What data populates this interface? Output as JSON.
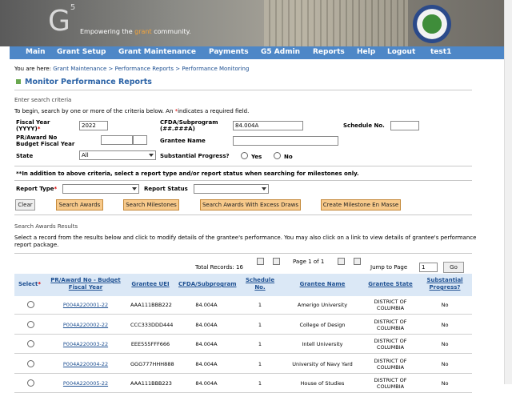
{
  "header": {
    "logo": "G",
    "logo_sup": "5",
    "tagline_pre": "Empowering the ",
    "tagline_em": "grant",
    "tagline_post": " community."
  },
  "nav": [
    "Main",
    "Grant Setup",
    "Grant Maintenance",
    "Payments",
    "G5 Admin",
    "Reports",
    "Help",
    "Logout",
    "test1"
  ],
  "breadcrumb": {
    "label": "You are here:",
    "items": [
      "Grant Maintenance",
      "Performance Reports",
      "Performance Monitoring"
    ],
    "separator": ">"
  },
  "page_title": "Monitor Performance Reports",
  "search": {
    "heading": "Enter search criteria",
    "instructions_pre": "To begin, search by one or more of the criteria below.  An ",
    "required_mark": "*",
    "instructions_post": "indicates a required field.",
    "fiscal_year": {
      "label": "Fiscal Year (YYYY)",
      "value": "2022"
    },
    "cfda": {
      "label": "CFDA/Subprogram (##.###A)",
      "value": "84.004A"
    },
    "schedule_no": {
      "label": "Schedule No."
    },
    "pr_award": {
      "label": "PR/Award No Budget Fiscal Year"
    },
    "grantee_name": {
      "label": "Grantee Name"
    },
    "state": {
      "label": "State",
      "value": "All"
    },
    "substantial_progress": {
      "label": "Substantial Progress?",
      "options": [
        "Yes",
        "No"
      ]
    },
    "note": "**In addition to above criteria, select a report type and/or report status when searching for milestones only.",
    "report_type": {
      "label": "Report Type"
    },
    "report_status": {
      "label": "Report Status"
    },
    "buttons": [
      "Clear",
      "Search Awards",
      "Search Milestones",
      "Search Awards With Excess Draws",
      "Create Milestone En Masse"
    ]
  },
  "results": {
    "heading": "Search Awards Results",
    "description": "Select a record from the results below and click to modify details of the grantee's performance. You may also click on a link to view details of grantee's performance report package.",
    "total_label": "Total Records:",
    "total": 16,
    "page_info": "Page 1 of 1",
    "jump_label": "Jump to Page",
    "jump_value": "1",
    "go": "Go",
    "table": {
      "headers": [
        "Select",
        "PR/Award No - Budget Fiscal Year",
        "Grantee UEI",
        "CFDA/Subprogram",
        "Schedule No.",
        "Grantee Name",
        "Grantee State",
        "Substantial Progress?"
      ],
      "rows": [
        [
          "P004A220001-22",
          "AAA111BBB222",
          "84.004A",
          "1",
          "Amerigo University",
          "DISTRICT OF COLUMBIA",
          "No"
        ],
        [
          "P004A220002-22",
          "CCC333DDD444",
          "84.004A",
          "1",
          "College of Design",
          "DISTRICT OF COLUMBIA",
          "No"
        ],
        [
          "P004A220003-22",
          "EEE555FFF666",
          "84.004A",
          "1",
          "Intell University",
          "DISTRICT OF COLUMBIA",
          "No"
        ],
        [
          "P004A220004-22",
          "GGG777HHH888",
          "84.004A",
          "1",
          "University of Navy Yard",
          "DISTRICT OF COLUMBIA",
          "No"
        ],
        [
          "P004A220005-22",
          "AAA111BBB223",
          "84.004A",
          "1",
          "House of Studies",
          "DISTRICT OF COLUMBIA",
          "No"
        ]
      ]
    }
  }
}
